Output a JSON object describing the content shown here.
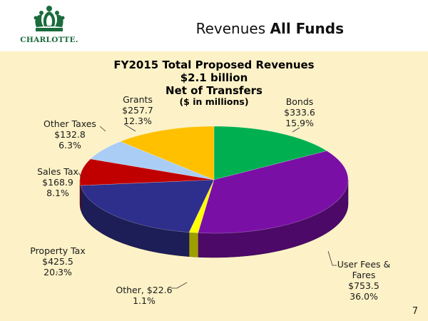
{
  "slide": {
    "title_plain": "Revenues ",
    "title_bold": "All Funds",
    "logo_text": "CHARLOTTE.",
    "page_number": "7"
  },
  "chart_data": {
    "type": "pie",
    "title_lines": [
      "FY2015 Total Proposed Revenues",
      "$2.1 billion",
      "Net of Transfers",
      "($ in millions)"
    ],
    "slices": [
      {
        "name": "Bonds",
        "value": 333.6,
        "percent": 15.9,
        "color": "#00b050",
        "label_lines": [
          "Bonds",
          "$333.6",
          "15.9%"
        ]
      },
      {
        "name": "User Fees & Fares",
        "value": 753.5,
        "percent": 36.0,
        "color": "#7a0fa6",
        "label_lines": [
          "User Fees &",
          "Fares",
          "$753.5",
          "36.0%"
        ]
      },
      {
        "name": "Other",
        "value": 22.6,
        "percent": 1.1,
        "color": "#ffff00",
        "label_lines": [
          "Other, $22.6",
          "1.1%"
        ]
      },
      {
        "name": "Property Tax",
        "value": 425.5,
        "percent": 20.3,
        "color": "#2e2e8c",
        "label_lines": [
          "Property Tax",
          "$425.5",
          "20.3%"
        ]
      },
      {
        "name": "Sales Tax",
        "value": 168.9,
        "percent": 8.1,
        "color": "#c00000",
        "label_lines": [
          "Sales Tax",
          "$168.9",
          "8.1%"
        ]
      },
      {
        "name": "Other Taxes",
        "value": 132.8,
        "percent": 6.3,
        "color": "#a9cdf5",
        "label_lines": [
          "Other Taxes",
          "$132.8",
          "6.3%"
        ]
      },
      {
        "name": "Grants",
        "value": 257.7,
        "percent": 12.3,
        "color": "#ffc000",
        "label_lines": [
          "Grants",
          "$257.7",
          "12.3%"
        ]
      }
    ]
  }
}
